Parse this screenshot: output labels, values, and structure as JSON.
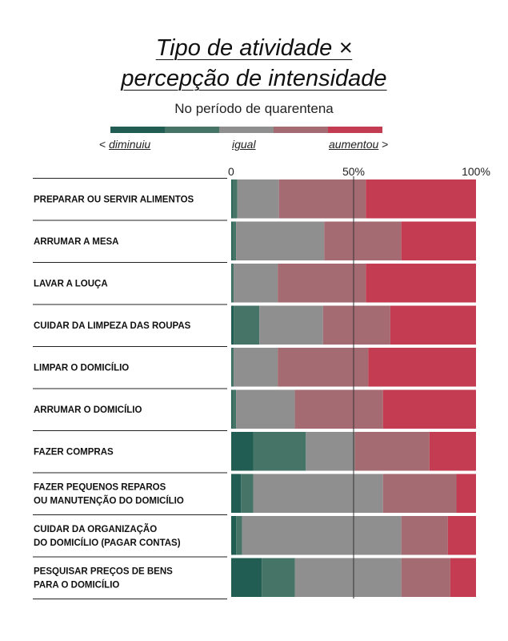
{
  "header": {
    "title_line1": "Tipo de atividade ×",
    "title_line2": "percepção de intensidade",
    "subtitle": "No período de quarentena"
  },
  "legend": {
    "colors": [
      "#215d52",
      "#467567",
      "#8f8f8f",
      "#a46b73",
      "#c43c52"
    ],
    "left_prefix": "<",
    "left_label": "diminuiu",
    "middle_label": "igual",
    "right_label": "aumentou",
    "right_suffix": ">"
  },
  "chart_data": {
    "type": "bar",
    "orientation": "horizontal",
    "stacked": true,
    "x_ticks": [
      "0",
      "50%",
      "100%"
    ],
    "xlim": [
      0,
      100
    ],
    "reference_line": 50,
    "categories": [
      [
        "PREPARAR OU SERVIR ALIMENTOS"
      ],
      [
        "ARRUMAR A MESA"
      ],
      [
        "LAVAR A LOUÇA"
      ],
      [
        "CUIDAR DA LIMPEZA DAS ROUPAS"
      ],
      [
        "LIMPAR O DOMICÍLIO"
      ],
      [
        "ARRUMAR O DOMICÍLIO"
      ],
      [
        "FAZER COMPRAS"
      ],
      [
        "FAZER PEQUENOS REPAROS",
        "OU MANUTENÇÃO DO DOMICÍLIO"
      ],
      [
        "CUIDAR DA ORGANIZAÇÃO",
        "DO DOMICÍLIO (PAGAR CONTAS)"
      ],
      [
        "PESQUISAR PREÇOS DE BENS",
        "PARA O DOMICÍLIO"
      ]
    ],
    "series": [
      {
        "values": [
          0.5,
          0.5,
          0.3,
          1.0,
          0.3,
          0.5,
          9.0,
          4.0,
          2.0,
          12.5
        ]
      },
      {
        "values": [
          2.0,
          1.5,
          0.7,
          10.5,
          0.7,
          1.5,
          21.5,
          5.0,
          2.5,
          13.5
        ]
      },
      {
        "values": [
          17.0,
          36.0,
          18.0,
          26.0,
          18.0,
          24.0,
          20.0,
          53.0,
          65.0,
          43.5
        ]
      },
      {
        "values": [
          35.5,
          31.5,
          36.0,
          27.5,
          37.0,
          36.0,
          30.5,
          30.0,
          19.0,
          20.0
        ]
      },
      {
        "values": [
          45.0,
          30.5,
          45.0,
          35.0,
          44.0,
          38.0,
          19.0,
          8.0,
          11.5,
          10.5
        ]
      }
    ]
  }
}
